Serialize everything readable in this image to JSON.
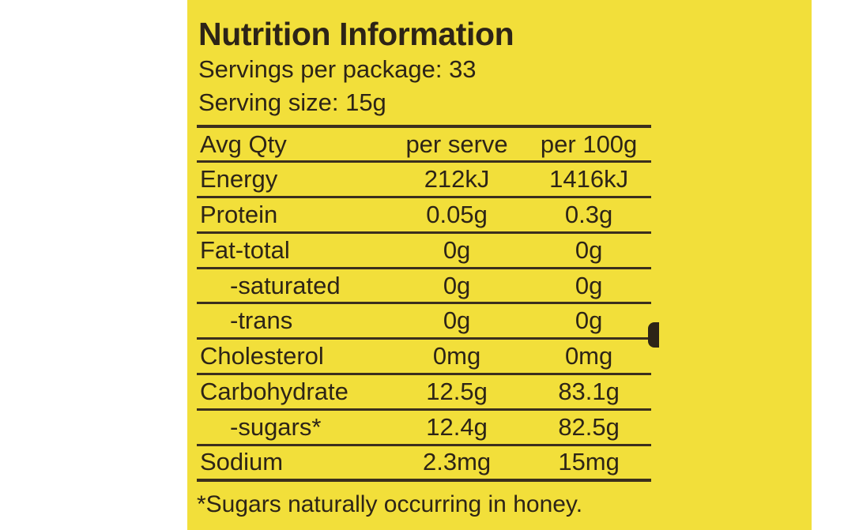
{
  "label": {
    "title": "Nutrition Information",
    "servings_per_package": "Servings per package: 33",
    "serving_size": "Serving size: 15g",
    "table": {
      "headers": [
        "Avg Qty",
        "per serve",
        "per 100g"
      ],
      "rows": [
        {
          "nutrient": "Energy",
          "per_serve": "212kJ",
          "per_100g": "1416kJ"
        },
        {
          "nutrient": "Protein",
          "per_serve": "0.05g",
          "per_100g": "0.3g"
        },
        {
          "nutrient": "Fat-total",
          "per_serve": "0g",
          "per_100g": "0g"
        },
        {
          "nutrient": "-saturated",
          "per_serve": "0g",
          "per_100g": "0g"
        },
        {
          "nutrient": "-trans",
          "per_serve": "0g",
          "per_100g": "0g"
        },
        {
          "nutrient": "Cholesterol",
          "per_serve": "0mg",
          "per_100g": "0mg"
        },
        {
          "nutrient": "Carbohydrate",
          "per_serve": "12.5g",
          "per_100g": "83.1g"
        },
        {
          "nutrient": "-sugars*",
          "per_serve": "12.4g",
          "per_100g": "82.5g"
        },
        {
          "nutrient": "Sodium",
          "per_serve": "2.3mg",
          "per_100g": "15mg"
        }
      ]
    },
    "footnote": "*Sugars naturally occurring in honey."
  },
  "colors": {
    "background": "#f2df3a",
    "text": "#2d2417",
    "rule": "#3b2f1d"
  }
}
